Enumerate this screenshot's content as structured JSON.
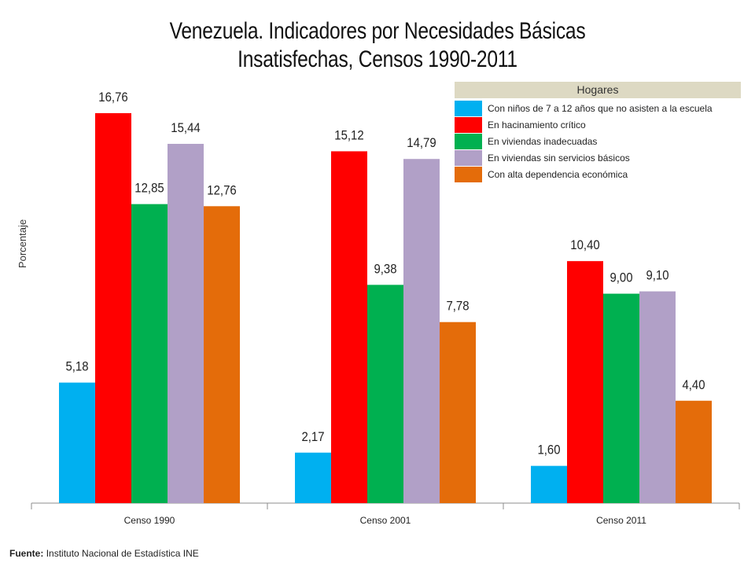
{
  "title_line1": "Venezuela. Indicadores por Necesidades Básicas",
  "title_line2": "Insatisfechas, Censos 1990-2011",
  "source": {
    "label": "Fuente:",
    "text": "Instituto Nacional de Estadística INE"
  },
  "chart_data": {
    "type": "bar",
    "ylabel": "Porcentaje",
    "xlabel": "",
    "ylim": [
      0,
      18
    ],
    "grid": false,
    "legend_title": "Hogares",
    "legend_position": "top-right",
    "categories": [
      "Censo 1990",
      "Censo 2001",
      "Censo 2011"
    ],
    "series": [
      {
        "name": "Con niños de 7 a 12 años que no asisten a la escuela",
        "color": "#00b0f0",
        "values": [
          5.18,
          2.17,
          1.6
        ],
        "labels": [
          "5,18",
          "2,17",
          "1,60"
        ]
      },
      {
        "name": "En hacinamiento crítico",
        "color": "#ff0000",
        "values": [
          16.76,
          15.12,
          10.4
        ],
        "labels": [
          "16,76",
          "15,12",
          "10,40"
        ]
      },
      {
        "name": "En viviendas inadecuadas",
        "color": "#00b050",
        "values": [
          12.85,
          9.38,
          9.0
        ],
        "labels": [
          "12,85",
          "9,38",
          "9,00"
        ]
      },
      {
        "name": "En viviendas sin servicios básicos",
        "color": "#b1a0c7",
        "values": [
          15.44,
          14.79,
          9.1
        ],
        "labels": [
          "15,44",
          "14,79",
          "9,10"
        ]
      },
      {
        "name": "Con alta dependencia económica",
        "color": "#e46c0a",
        "values": [
          12.76,
          7.78,
          4.4
        ],
        "labels": [
          "12,76",
          "7,78",
          "4,40"
        ]
      }
    ]
  }
}
